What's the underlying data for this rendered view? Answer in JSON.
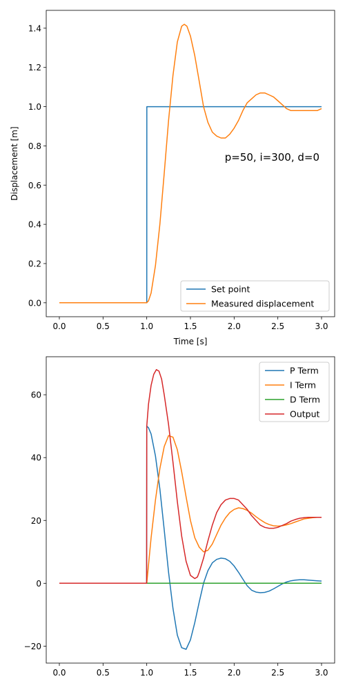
{
  "chart_data": [
    {
      "type": "line",
      "title": "",
      "xlabel": "Time [s]",
      "ylabel": "Displacement [m]",
      "xlim": [
        -0.15,
        3.15
      ],
      "ylim": [
        -0.071,
        1.491
      ],
      "xticks": [
        "0.0",
        "0.5",
        "1.0",
        "1.5",
        "2.0",
        "2.5",
        "3.0"
      ],
      "yticks": [
        "0.0",
        "0.2",
        "0.4",
        "0.6",
        "0.8",
        "1.0",
        "1.2",
        "1.4"
      ],
      "annotation": "p=50, i=300, d=0",
      "legend_position": "lower right",
      "grid": false,
      "series": [
        {
          "name": "Set point",
          "color": "#1f77b4",
          "x": [
            0,
            0.999,
            1.0,
            1.001,
            3.0
          ],
          "y": [
            0,
            0,
            0,
            1,
            1
          ]
        },
        {
          "name": "Measured displacement",
          "color": "#ff7f0e",
          "x": [
            0,
            0.5,
            1.0,
            1.02,
            1.05,
            1.1,
            1.15,
            1.2,
            1.25,
            1.3,
            1.35,
            1.4,
            1.43,
            1.46,
            1.5,
            1.55,
            1.6,
            1.65,
            1.7,
            1.75,
            1.8,
            1.85,
            1.9,
            1.95,
            2.0,
            2.05,
            2.1,
            2.15,
            2.2,
            2.25,
            2.3,
            2.35,
            2.4,
            2.45,
            2.5,
            2.55,
            2.6,
            2.65,
            2.7,
            2.75,
            2.8,
            2.85,
            2.9,
            2.95,
            3.0
          ],
          "y": [
            0,
            0,
            0,
            0.01,
            0.05,
            0.19,
            0.4,
            0.66,
            0.93,
            1.16,
            1.33,
            1.41,
            1.42,
            1.41,
            1.36,
            1.26,
            1.13,
            1.0,
            0.92,
            0.87,
            0.85,
            0.84,
            0.84,
            0.86,
            0.89,
            0.93,
            0.98,
            1.02,
            1.04,
            1.06,
            1.07,
            1.07,
            1.06,
            1.05,
            1.03,
            1.01,
            0.99,
            0.98,
            0.98,
            0.98,
            0.98,
            0.98,
            0.98,
            0.98,
            0.99
          ]
        }
      ]
    },
    {
      "type": "line",
      "title": "",
      "xlabel": "",
      "ylabel": "",
      "xlim": [
        -0.15,
        3.15
      ],
      "ylim": [
        -25.4,
        72.1
      ],
      "xticks": [
        "0.0",
        "0.5",
        "1.0",
        "1.5",
        "2.0",
        "2.5",
        "3.0"
      ],
      "yticks": [
        "−20",
        "0",
        "20",
        "40",
        "60"
      ],
      "ytick_values": [
        -20,
        0,
        20,
        40,
        60
      ],
      "legend_position": "upper right",
      "grid": false,
      "series": [
        {
          "name": "P Term",
          "color": "#1f77b4",
          "x": [
            0,
            0.999,
            1.0,
            1.02,
            1.05,
            1.1,
            1.15,
            1.2,
            1.25,
            1.3,
            1.35,
            1.4,
            1.45,
            1.5,
            1.55,
            1.6,
            1.65,
            1.7,
            1.75,
            1.8,
            1.85,
            1.9,
            1.95,
            2.0,
            2.05,
            2.1,
            2.15,
            2.2,
            2.25,
            2.3,
            2.35,
            2.4,
            2.45,
            2.5,
            2.55,
            2.6,
            2.65,
            2.7,
            2.75,
            2.8,
            2.85,
            2.9,
            2.95,
            3.0
          ],
          "y": [
            0,
            0,
            50,
            49.5,
            47.5,
            40.5,
            30,
            17,
            3.5,
            -8,
            -16.5,
            -20.5,
            -21,
            -18,
            -12.5,
            -6,
            0,
            4,
            6.5,
            7.6,
            8,
            7.8,
            7,
            5.5,
            3.5,
            1.3,
            -0.8,
            -2.2,
            -2.8,
            -3,
            -2.9,
            -2.5,
            -1.8,
            -1,
            -0.2,
            0.4,
            0.8,
            1.0,
            1.1,
            1.1,
            1.0,
            0.9,
            0.8,
            0.7
          ]
        },
        {
          "name": "I Term",
          "color": "#ff7f0e",
          "x": [
            0,
            0.999,
            1.0,
            1.05,
            1.1,
            1.15,
            1.2,
            1.25,
            1.3,
            1.35,
            1.4,
            1.45,
            1.5,
            1.55,
            1.6,
            1.65,
            1.7,
            1.75,
            1.8,
            1.85,
            1.9,
            1.95,
            2.0,
            2.05,
            2.1,
            2.15,
            2.2,
            2.25,
            2.3,
            2.35,
            2.4,
            2.45,
            2.5,
            2.55,
            2.6,
            2.65,
            2.7,
            2.75,
            2.8,
            2.85,
            2.9,
            2.95,
            3.0
          ],
          "y": [
            0,
            0,
            0,
            14.5,
            26.5,
            36.5,
            43.5,
            47,
            46.5,
            42.5,
            35.5,
            27.5,
            20,
            14.5,
            11.5,
            10,
            10.5,
            12.5,
            15.5,
            18.5,
            20.8,
            22.5,
            23.5,
            24,
            23.8,
            23.2,
            22.3,
            21.2,
            20.2,
            19.3,
            18.7,
            18.3,
            18.2,
            18.3,
            18.6,
            19,
            19.5,
            20,
            20.5,
            20.7,
            20.9,
            21,
            21
          ]
        },
        {
          "name": "D Term",
          "color": "#2ca02c",
          "x": [
            0,
            3.0
          ],
          "y": [
            0,
            0
          ]
        },
        {
          "name": "Output",
          "color": "#d62728",
          "x": [
            0,
            0.999,
            1.0,
            1.02,
            1.05,
            1.08,
            1.11,
            1.14,
            1.17,
            1.2,
            1.25,
            1.3,
            1.35,
            1.4,
            1.45,
            1.5,
            1.55,
            1.58,
            1.6,
            1.65,
            1.7,
            1.75,
            1.8,
            1.85,
            1.9,
            1.95,
            2.0,
            2.05,
            2.1,
            2.15,
            2.2,
            2.25,
            2.3,
            2.35,
            2.4,
            2.45,
            2.5,
            2.55,
            2.6,
            2.65,
            2.7,
            2.75,
            2.8,
            2.85,
            2.9,
            2.95,
            3.0
          ],
          "y": [
            0,
            0,
            50,
            57,
            63,
            66.5,
            68,
            67.5,
            65,
            60,
            50.5,
            38.5,
            26,
            15,
            7,
            2.5,
            1.5,
            2,
            3.5,
            8,
            13.5,
            18.5,
            22.5,
            25,
            26.5,
            27,
            27,
            26.5,
            25,
            23.5,
            21.5,
            20,
            18.5,
            17.8,
            17.5,
            17.5,
            17.8,
            18.4,
            19,
            19.8,
            20.3,
            20.7,
            20.9,
            21,
            21,
            21,
            21
          ]
        }
      ]
    }
  ]
}
